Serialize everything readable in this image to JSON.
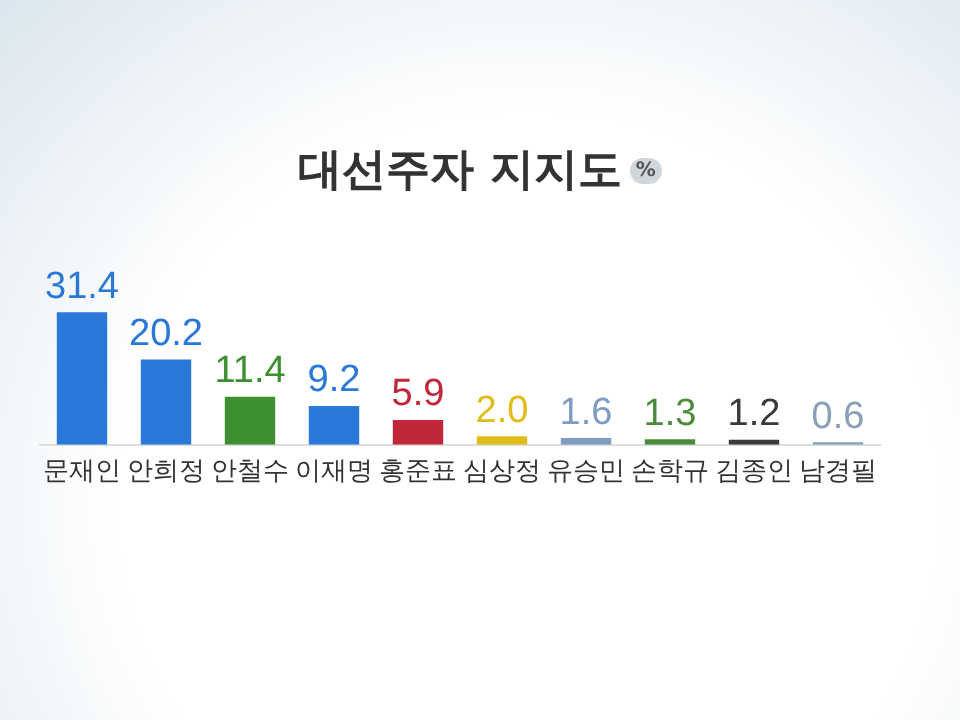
{
  "chart_data": {
    "type": "bar",
    "title": "대선주자 지지도",
    "subtitle": "%",
    "categories": [
      "문재인",
      "안희정",
      "안철수",
      "이재명",
      "홍준표",
      "심상정",
      "유승민",
      "손학규",
      "김종인",
      "남경필"
    ],
    "values": [
      31.4,
      20.2,
      11.4,
      9.2,
      5.9,
      2.0,
      1.6,
      1.3,
      1.2,
      0.6
    ],
    "colors": [
      "#2a78d8",
      "#2a78d8",
      "#3d8f2f",
      "#2a78d8",
      "#c0283a",
      "#e0bc1c",
      "#7e9cc0",
      "#4a8a3a",
      "#3a3a3a",
      "#8aa0b8"
    ],
    "value_labels": [
      "31.4",
      "20.2",
      "11.4",
      "9.2",
      "5.9",
      "2.0",
      "1.6",
      "1.3",
      "1.2",
      "0.6"
    ],
    "data_labels": true,
    "tick_labels": "x",
    "grid": false,
    "legend": false
  }
}
